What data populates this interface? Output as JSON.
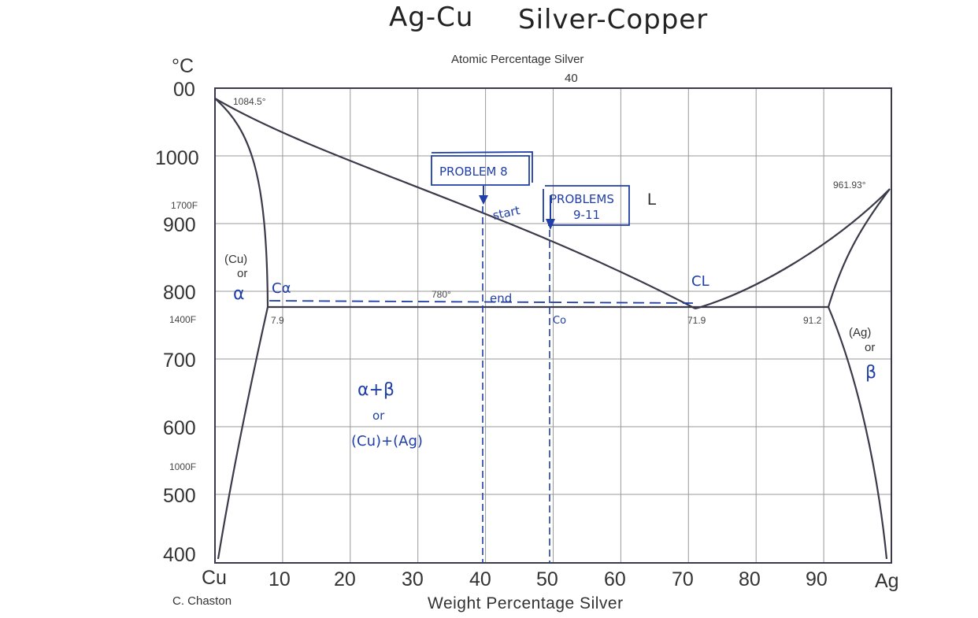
{
  "figure": {
    "title_left": "Ag-Cu",
    "title_right": "Silver-Copper",
    "top_axis_label": "Atomic Percentage Silver",
    "top_axis_tick": "40",
    "y_unit": "°C",
    "bottom_axis_label": "Weight Percentage Silver",
    "credit": "C. Chaston",
    "x_end_left": "Cu",
    "x_end_right": "Ag",
    "x_ticks": [
      "10",
      "20",
      "30",
      "40",
      "50",
      "60",
      "70",
      "80",
      "90"
    ],
    "y_ticks": [
      "00",
      "1000",
      "900",
      "800",
      "700",
      "600",
      "500",
      "400"
    ],
    "fahrenheit_ticks": [
      "1700F",
      "1400F",
      "1000F"
    ],
    "labels": {
      "cu_melting": "1084.5°",
      "ag_melting": "961.93°",
      "eutectic_temp": "780°",
      "alpha_limit": "7.9",
      "eutectic_comp": "71.9",
      "beta_limit": "91.2",
      "liquid": "L",
      "cu_phase": "(Cu)",
      "cu_or": "or",
      "ag_phase": "(Ag)",
      "ag_or": "or"
    },
    "annotations": {
      "problem8": "PROBLEM 8",
      "problems_line1": "PROBLEMS",
      "problems_line2": "9-11",
      "start": "start",
      "end": "end",
      "c_alpha": "Cα",
      "c_l": "CL",
      "c_o": "Co",
      "alpha_greek": "α",
      "beta_greek": "β",
      "two_phase_line1": "α+β",
      "two_phase_line2": "or",
      "two_phase_line3": "(Cu)+(Ag)"
    },
    "colors": {
      "line": "#3a3a4a",
      "grid": "#9a9a9a",
      "ink": "#1f3ea8"
    }
  },
  "chart_data": {
    "type": "phase-diagram",
    "x_unit": "wt% Ag",
    "y_unit": "°C",
    "xlim": [
      0,
      100
    ],
    "ylim": [
      400,
      1100
    ],
    "key_points": {
      "cu_melting": [
        0,
        1084.5
      ],
      "ag_melting": [
        100,
        961.93
      ],
      "eutectic": [
        71.9,
        780
      ],
      "alpha_max_solubility": [
        7.9,
        780
      ],
      "beta_max_solubility": [
        91.2,
        780
      ]
    },
    "marked_compositions": [
      40,
      50
    ]
  }
}
